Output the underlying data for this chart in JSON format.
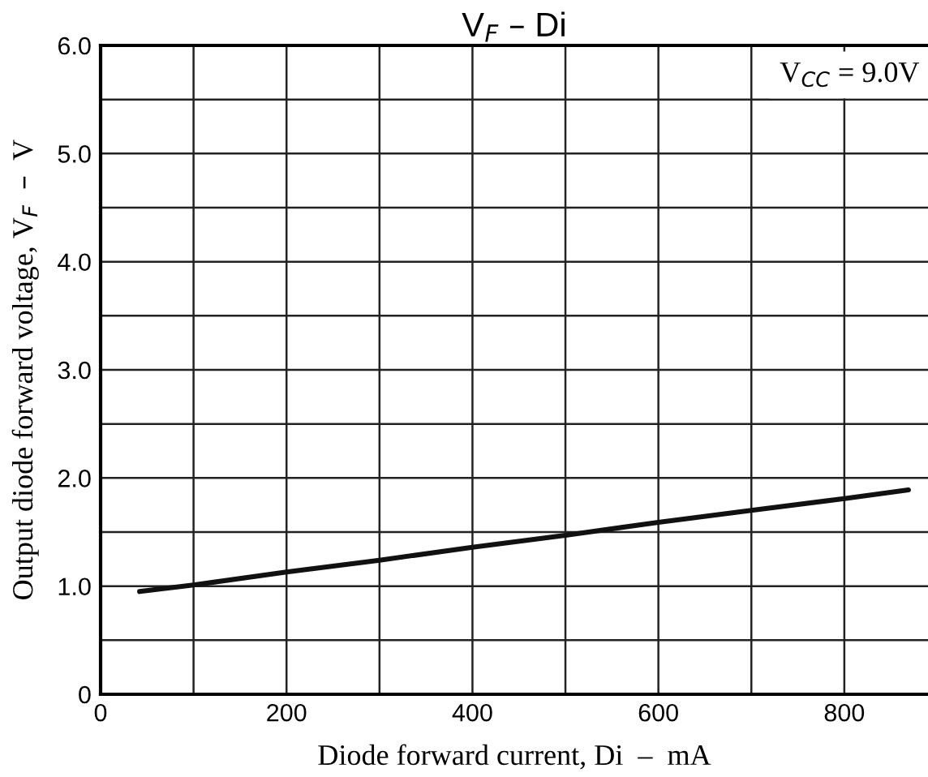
{
  "chart_data": {
    "type": "line",
    "title": "V$_{F}$ – Di",
    "xlabel": "Diode forward current, Di  –  mA",
    "ylabel": "Output diode forward voltage, V$_{F}$  –  V",
    "annotations": [
      "V$_{CC}$ = 9.0V"
    ],
    "series": [
      {
        "color": "#111111",
        "x": [
          42,
          100,
          200,
          300,
          400,
          500,
          600,
          700,
          800,
          869
        ],
        "values": [
          0.95,
          1.01,
          1.13,
          1.24,
          1.36,
          1.47,
          1.59,
          1.7,
          1.81,
          1.89
        ]
      }
    ],
    "xlim": [
      0,
      890
    ],
    "ylim": [
      0,
      6
    ],
    "xticks": [
      0,
      {
        "value": 100,
        "label": null
      },
      200,
      {
        "value": 300,
        "label": null
      },
      400,
      {
        "value": 500,
        "label": null
      },
      600,
      {
        "value": 700,
        "label": null
      },
      800
    ],
    "yticks": [
      0,
      {
        "value": 0.5,
        "label": null
      },
      {
        "value": 1,
        "label": "1.0"
      },
      {
        "value": 1.5,
        "label": null
      },
      {
        "value": 2,
        "label": "2.0"
      },
      {
        "value": 2.5,
        "label": null
      },
      {
        "value": 3,
        "label": "3.0"
      },
      {
        "value": 3.5,
        "label": null
      },
      {
        "value": 4,
        "label": "4.0"
      },
      {
        "value": 4.5,
        "label": null
      },
      {
        "value": 5,
        "label": "5.0"
      },
      {
        "value": 5.5,
        "label": null
      },
      {
        "value": 6,
        "label": "6.0"
      }
    ],
    "grid": true,
    "line_style": "solid",
    "marker": "none"
  }
}
